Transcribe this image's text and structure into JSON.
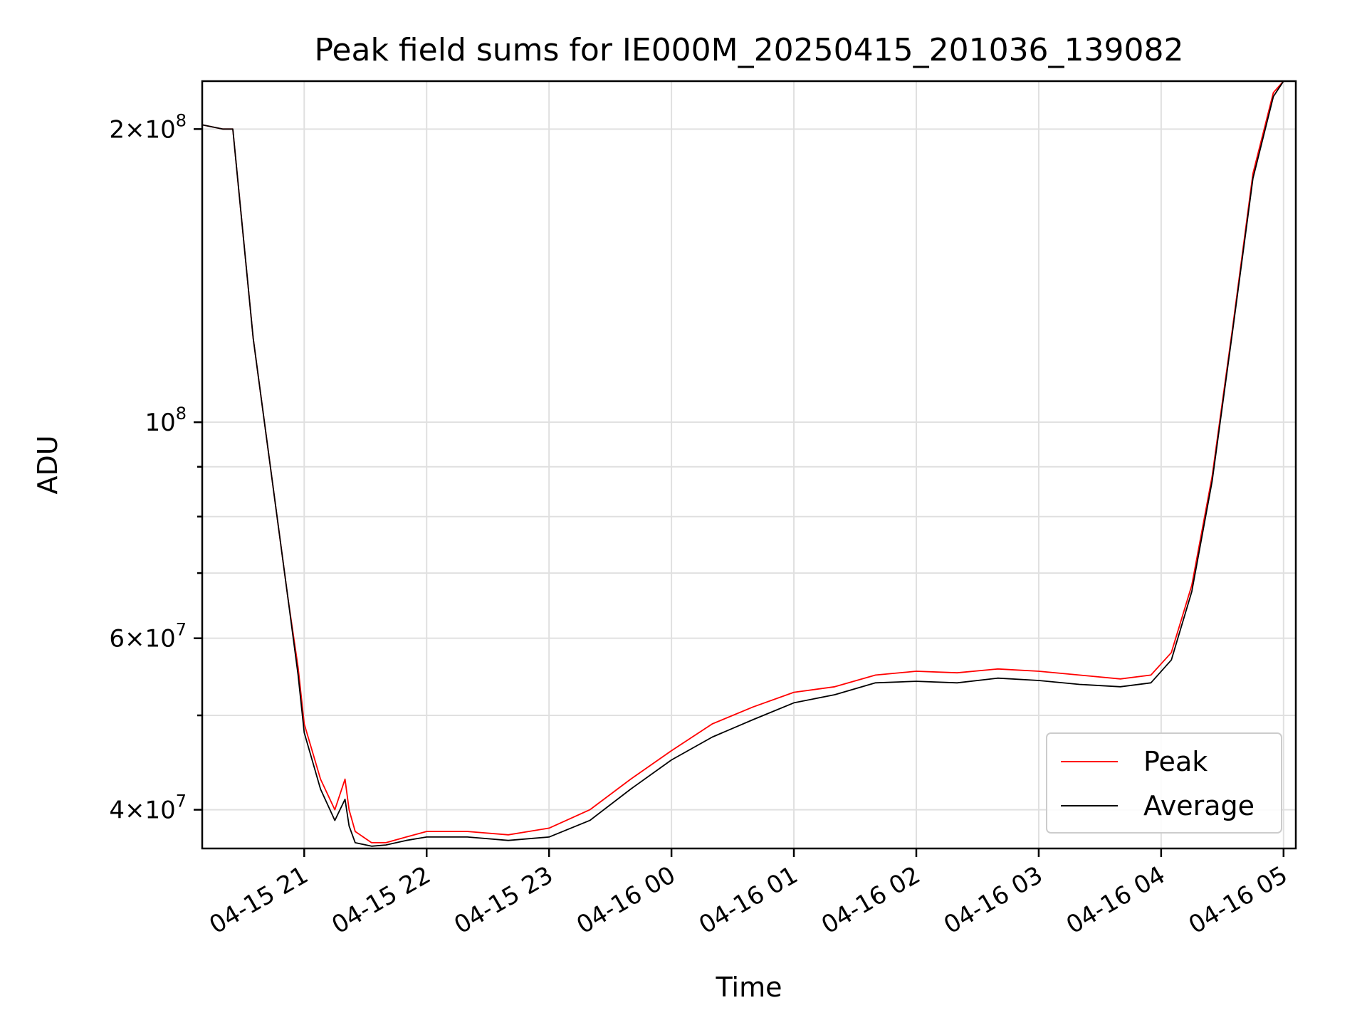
{
  "chart_data": {
    "type": "line",
    "title": "Peak field sums for IE000M_20250415_201036_139082",
    "xlabel": "Time",
    "ylabel": "ADU",
    "yscale": "log",
    "grid": true,
    "legend_position": "lower-right",
    "xlim": [
      "2025-04-15 20:10",
      "2025-04-16 05:06"
    ],
    "ylim": [
      36500000,
      224000000
    ],
    "x_ticks": [
      {
        "value": "2025-04-15 21:00",
        "label": "04-15 21"
      },
      {
        "value": "2025-04-15 22:00",
        "label": "04-15 22"
      },
      {
        "value": "2025-04-15 23:00",
        "label": "04-15 23"
      },
      {
        "value": "2025-04-16 00:00",
        "label": "04-16 00"
      },
      {
        "value": "2025-04-16 01:00",
        "label": "04-16 01"
      },
      {
        "value": "2025-04-16 02:00",
        "label": "04-16 02"
      },
      {
        "value": "2025-04-16 03:00",
        "label": "04-16 03"
      },
      {
        "value": "2025-04-16 04:00",
        "label": "04-16 04"
      },
      {
        "value": "2025-04-16 05:00",
        "label": "04-16 05"
      }
    ],
    "y_ticks": [
      {
        "value": 40000000,
        "base": "4",
        "exp": "7"
      },
      {
        "value": 60000000,
        "base": "6",
        "exp": "7"
      },
      {
        "value": 100000000,
        "base": "",
        "exp": "8"
      },
      {
        "value": 200000000,
        "base": "2",
        "exp": "8"
      }
    ],
    "y_minor_ticks": [
      50000000,
      70000000,
      80000000,
      90000000
    ],
    "series": [
      {
        "name": "Peak",
        "color": "#ff0000",
        "x": [
          "2025-04-15 20:10",
          "2025-04-15 20:20",
          "2025-04-15 20:25",
          "2025-04-15 20:35",
          "2025-04-15 20:45",
          "2025-04-15 20:52",
          "2025-04-15 20:57",
          "2025-04-15 21:00",
          "2025-04-15 21:08",
          "2025-04-15 21:15",
          "2025-04-15 21:20",
          "2025-04-15 21:22",
          "2025-04-15 21:25",
          "2025-04-15 21:33",
          "2025-04-15 21:40",
          "2025-04-15 21:50",
          "2025-04-15 22:00",
          "2025-04-15 22:20",
          "2025-04-15 22:40",
          "2025-04-15 23:00",
          "2025-04-15 23:20",
          "2025-04-15 23:40",
          "2025-04-16 00:00",
          "2025-04-16 00:20",
          "2025-04-16 00:40",
          "2025-04-16 01:00",
          "2025-04-16 01:20",
          "2025-04-16 01:40",
          "2025-04-16 02:00",
          "2025-04-16 02:20",
          "2025-04-16 02:40",
          "2025-04-16 03:00",
          "2025-04-16 03:20",
          "2025-04-16 03:40",
          "2025-04-16 03:55",
          "2025-04-16 04:05",
          "2025-04-16 04:15",
          "2025-04-16 04:25",
          "2025-04-16 04:35",
          "2025-04-16 04:45",
          "2025-04-16 04:55",
          "2025-04-16 05:00",
          "2025-04-16 05:06"
        ],
        "values": [
          202000000,
          200000000,
          200000000,
          122000000,
          85000000,
          66000000,
          56000000,
          49000000,
          43000000,
          40000000,
          43000000,
          40000000,
          38000000,
          37000000,
          37000000,
          37500000,
          38000000,
          38000000,
          37700000,
          38300000,
          40000000,
          43000000,
          46000000,
          49000000,
          51000000,
          52800000,
          53500000,
          55000000,
          55500000,
          55300000,
          55800000,
          55500000,
          55000000,
          54500000,
          55000000,
          58000000,
          68000000,
          88000000,
          125000000,
          180000000,
          218000000,
          224000000,
          224000000
        ]
      },
      {
        "name": "Average",
        "color": "#000000",
        "x": [
          "2025-04-15 20:10",
          "2025-04-15 20:20",
          "2025-04-15 20:25",
          "2025-04-15 20:35",
          "2025-04-15 20:45",
          "2025-04-15 20:52",
          "2025-04-15 20:57",
          "2025-04-15 21:00",
          "2025-04-15 21:08",
          "2025-04-15 21:15",
          "2025-04-15 21:20",
          "2025-04-15 21:22",
          "2025-04-15 21:25",
          "2025-04-15 21:33",
          "2025-04-15 21:40",
          "2025-04-15 21:50",
          "2025-04-15 22:00",
          "2025-04-15 22:20",
          "2025-04-15 22:40",
          "2025-04-15 23:00",
          "2025-04-15 23:20",
          "2025-04-15 23:40",
          "2025-04-16 00:00",
          "2025-04-16 00:20",
          "2025-04-16 00:40",
          "2025-04-16 01:00",
          "2025-04-16 01:20",
          "2025-04-16 01:40",
          "2025-04-16 02:00",
          "2025-04-16 02:20",
          "2025-04-16 02:40",
          "2025-04-16 03:00",
          "2025-04-16 03:20",
          "2025-04-16 03:40",
          "2025-04-16 03:55",
          "2025-04-16 04:05",
          "2025-04-16 04:15",
          "2025-04-16 04:25",
          "2025-04-16 04:35",
          "2025-04-16 04:45",
          "2025-04-16 04:55",
          "2025-04-16 05:00",
          "2025-04-16 05:06"
        ],
        "values": [
          202000000,
          200000000,
          200000000,
          122000000,
          85000000,
          66000000,
          55000000,
          48000000,
          42000000,
          39000000,
          41000000,
          38500000,
          37000000,
          36700000,
          36800000,
          37200000,
          37500000,
          37500000,
          37200000,
          37500000,
          39000000,
          42000000,
          45000000,
          47500000,
          49500000,
          51500000,
          52500000,
          54000000,
          54200000,
          54000000,
          54600000,
          54300000,
          53800000,
          53500000,
          54000000,
          57000000,
          67000000,
          87000000,
          124000000,
          178000000,
          216000000,
          224000000,
          224000000
        ]
      }
    ],
    "legend": [
      {
        "label": "Peak",
        "color": "#ff0000"
      },
      {
        "label": "Average",
        "color": "#000000"
      }
    ]
  }
}
